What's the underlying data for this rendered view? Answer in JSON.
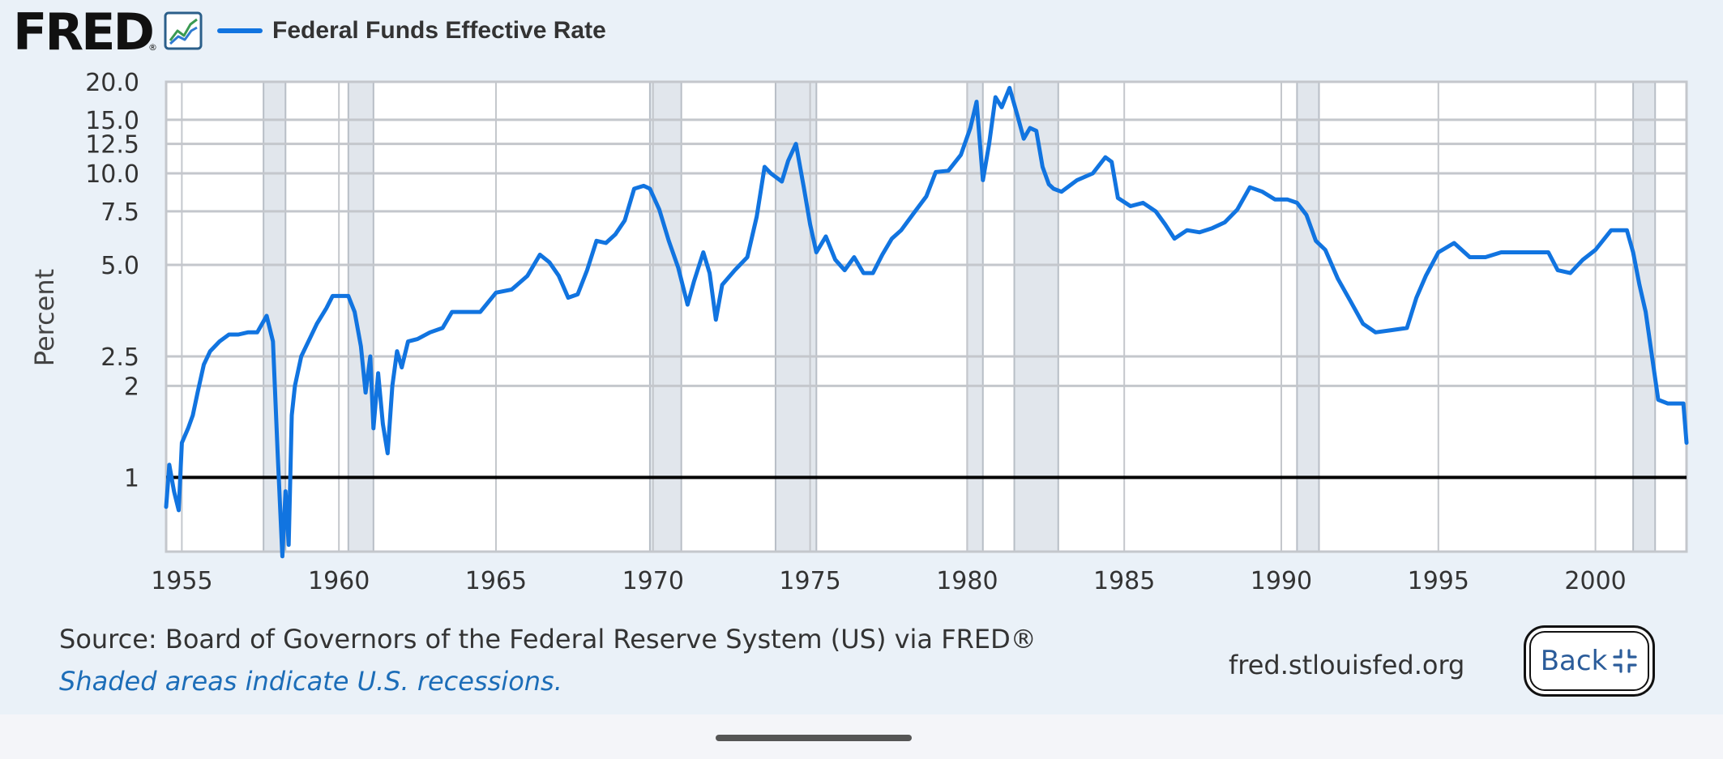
{
  "header": {
    "logo_text": "FRED",
    "logo_reg": "®",
    "graph_icon": "line-graph-icon"
  },
  "legend": {
    "label": "Federal Funds Effective Rate",
    "color": "#1174e0"
  },
  "footer": {
    "source": "Source: Board of Governors of the Federal Reserve System (US) via FRED®",
    "shade_note": "Shaded areas indicate U.S. recessions.",
    "url": "fred.stlouisfed.org",
    "back_label": "Back",
    "back_icon": "collapse-icon"
  },
  "chart_data": {
    "type": "line",
    "title": "",
    "xlabel": "",
    "ylabel": "Percent",
    "y_scale": "log",
    "xlim": [
      1954.5,
      2002.9
    ],
    "ylim": [
      0.57,
      20.0
    ],
    "x_ticks": [
      1955,
      1960,
      1965,
      1970,
      1975,
      1980,
      1985,
      1990,
      1995,
      2000
    ],
    "x_tick_labels": [
      "1955",
      "1960",
      "1965",
      "1970",
      "1975",
      "1980",
      "1985",
      "1990",
      "1995",
      "2000"
    ],
    "y_ticks": [
      1,
      2,
      2.5,
      5.0,
      7.5,
      10.0,
      12.5,
      15.0,
      20.0
    ],
    "y_tick_labels": [
      "1",
      "2",
      "2.5",
      "5.0",
      "7.5",
      "10.0",
      "12.5",
      "15.0",
      "20.0"
    ],
    "grid": true,
    "reference_line": 1,
    "legend_position": "top-left",
    "recessions": [
      [
        1957.6,
        1958.3
      ],
      [
        1960.3,
        1961.1
      ],
      [
        1969.9,
        1970.9
      ],
      [
        1973.9,
        1975.2
      ],
      [
        1980.0,
        1980.5
      ],
      [
        1981.5,
        1982.9
      ],
      [
        1990.5,
        1991.2
      ],
      [
        2001.2,
        2001.9
      ]
    ],
    "colors": {
      "line": "#1174e0",
      "recession_fill": "#e1e6ec",
      "recession_edge": "#b8bec6",
      "grid": "#c4c7cc",
      "plot_bg": "#ffffff"
    },
    "series": [
      {
        "name": "Federal Funds Effective Rate",
        "x": [
          1954.5,
          1954.6,
          1954.75,
          1954.9,
          1955.0,
          1955.2,
          1955.35,
          1955.5,
          1955.7,
          1955.9,
          1956.2,
          1956.5,
          1956.8,
          1957.1,
          1957.4,
          1957.7,
          1957.9,
          1958.05,
          1958.2,
          1958.3,
          1958.4,
          1958.5,
          1958.6,
          1958.8,
          1959.1,
          1959.3,
          1959.6,
          1959.8,
          1960.1,
          1960.3,
          1960.5,
          1960.7,
          1960.85,
          1961.0,
          1961.1,
          1961.25,
          1961.4,
          1961.55,
          1961.7,
          1961.85,
          1962.0,
          1962.2,
          1962.5,
          1962.9,
          1963.3,
          1963.6,
          1964.0,
          1964.5,
          1965.0,
          1965.5,
          1966.0,
          1966.4,
          1966.7,
          1967.0,
          1967.3,
          1967.6,
          1967.9,
          1968.2,
          1968.5,
          1968.8,
          1969.1,
          1969.4,
          1969.7,
          1969.9,
          1970.2,
          1970.5,
          1970.8,
          1971.1,
          1971.3,
          1971.6,
          1971.8,
          1972.0,
          1972.2,
          1972.6,
          1973.0,
          1973.3,
          1973.55,
          1973.75,
          1974.1,
          1974.3,
          1974.55,
          1974.8,
          1975.0,
          1975.2,
          1975.5,
          1975.8,
          1976.1,
          1976.4,
          1976.7,
          1977.0,
          1977.3,
          1977.6,
          1977.9,
          1978.3,
          1978.7,
          1979.0,
          1979.4,
          1979.8,
          1980.1,
          1980.3,
          1980.5,
          1980.7,
          1980.9,
          1981.1,
          1981.35,
          1981.6,
          1981.8,
          1982.0,
          1982.2,
          1982.4,
          1982.6,
          1982.75,
          1983.0,
          1983.5,
          1984.0,
          1984.4,
          1984.6,
          1984.8,
          1985.2,
          1985.6,
          1986.0,
          1986.3,
          1986.6,
          1987.0,
          1987.4,
          1987.8,
          1988.2,
          1988.6,
          1989.0,
          1989.4,
          1989.8,
          1990.2,
          1990.5,
          1990.8,
          1991.1,
          1991.4,
          1991.8,
          1992.2,
          1992.6,
          1993.0,
          1993.5,
          1994.0,
          1994.3,
          1994.6,
          1995.0,
          1995.5,
          1996.0,
          1996.5,
          1997.0,
          1997.5,
          1998.0,
          1998.5,
          1998.8,
          1999.2,
          1999.6,
          2000.0,
          2000.5,
          2001.0,
          2001.2,
          2001.4,
          2001.6,
          2001.8,
          2002.0,
          2002.3,
          2002.6,
          2002.8,
          2002.9
        ],
        "values": [
          0.8,
          1.1,
          0.9,
          0.78,
          1.3,
          1.45,
          1.6,
          1.9,
          2.35,
          2.6,
          2.8,
          2.95,
          2.95,
          3.0,
          3.0,
          3.4,
          2.8,
          1.2,
          0.55,
          0.9,
          0.6,
          1.6,
          2.0,
          2.5,
          2.9,
          3.2,
          3.6,
          3.95,
          3.95,
          3.95,
          3.5,
          2.7,
          1.9,
          2.5,
          1.45,
          2.2,
          1.5,
          1.2,
          2.0,
          2.6,
          2.3,
          2.8,
          2.85,
          3.0,
          3.1,
          3.5,
          3.5,
          3.5,
          4.05,
          4.15,
          4.6,
          5.4,
          5.1,
          4.6,
          3.9,
          4.0,
          4.8,
          6.0,
          5.9,
          6.3,
          7.0,
          8.9,
          9.1,
          8.9,
          7.6,
          6.0,
          4.9,
          3.7,
          4.4,
          5.5,
          4.7,
          3.3,
          4.3,
          4.8,
          5.3,
          7.2,
          10.5,
          10.0,
          9.4,
          11.0,
          12.5,
          9.0,
          6.8,
          5.5,
          6.2,
          5.2,
          4.8,
          5.3,
          4.7,
          4.7,
          5.4,
          6.1,
          6.5,
          7.4,
          8.4,
          10.1,
          10.2,
          11.5,
          14.1,
          17.2,
          9.5,
          12.5,
          17.8,
          16.5,
          19.1,
          15.5,
          13.0,
          14.1,
          13.8,
          10.5,
          9.2,
          8.9,
          8.7,
          9.5,
          10.0,
          11.3,
          10.9,
          8.3,
          7.8,
          8.0,
          7.5,
          6.8,
          6.1,
          6.5,
          6.4,
          6.6,
          6.9,
          7.6,
          9.0,
          8.7,
          8.2,
          8.2,
          8.0,
          7.3,
          6.0,
          5.6,
          4.5,
          3.8,
          3.2,
          3.0,
          3.05,
          3.1,
          3.9,
          4.6,
          5.5,
          5.9,
          5.3,
          5.3,
          5.5,
          5.5,
          5.5,
          5.5,
          4.8,
          4.7,
          5.2,
          5.6,
          6.5,
          6.5,
          5.5,
          4.3,
          3.5,
          2.5,
          1.8,
          1.75,
          1.75,
          1.75,
          1.3
        ]
      }
    ]
  }
}
